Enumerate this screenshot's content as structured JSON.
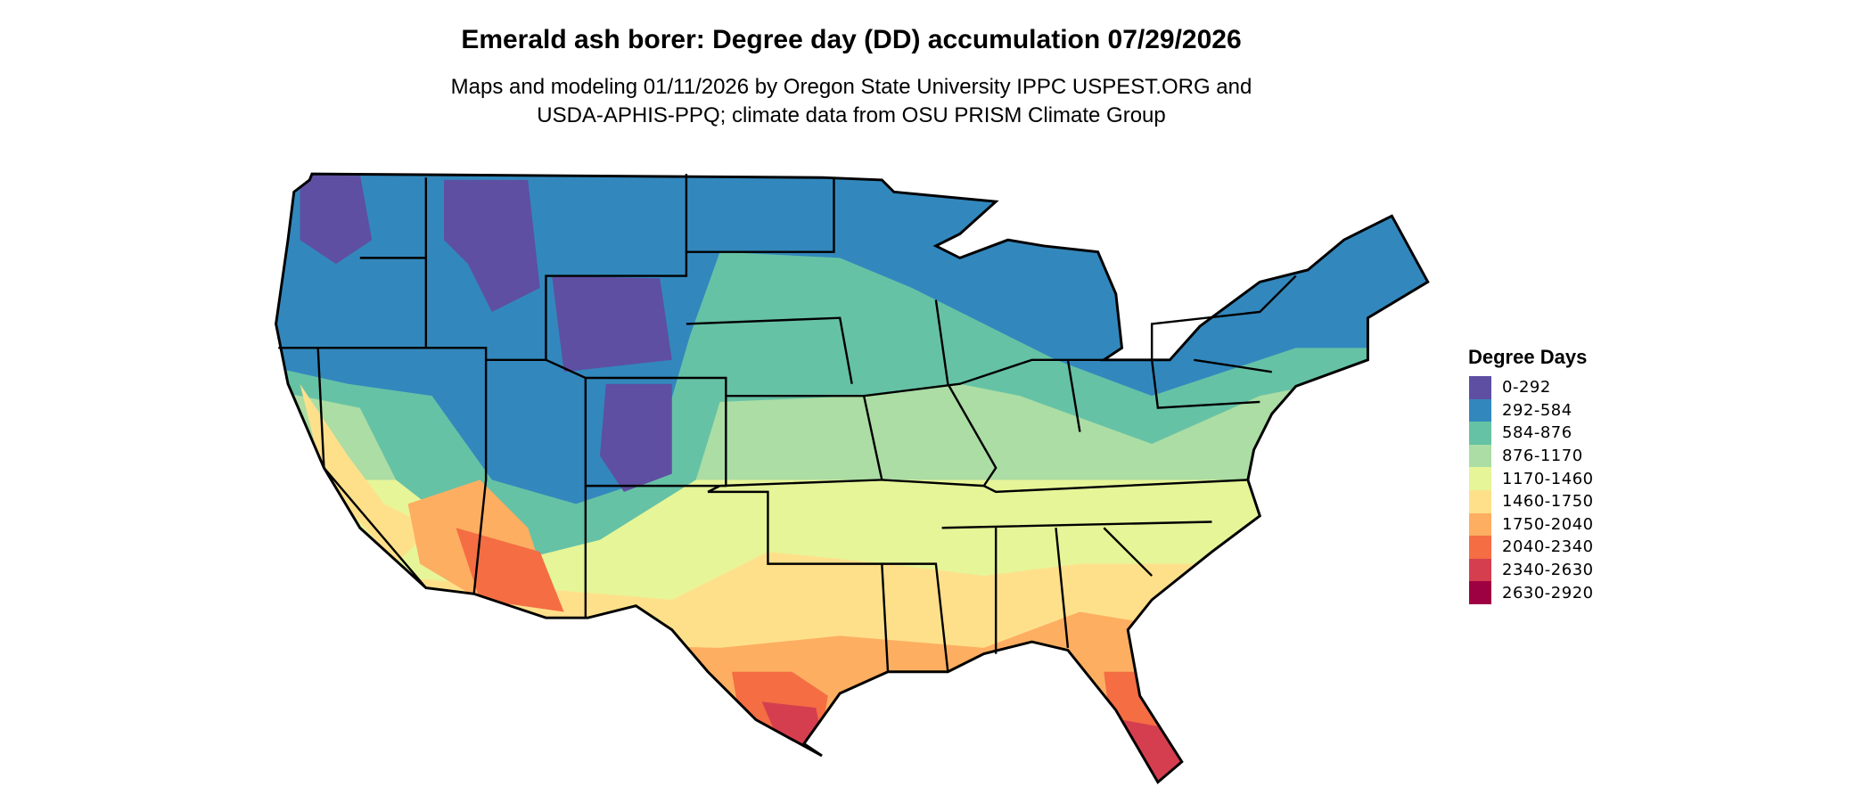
{
  "title": "Emerald ash borer: Degree day (DD) accumulation 07/29/2026",
  "subtitle_lines": [
    "Maps and modeling 01/11/2026 by Oregon State University IPPC USPEST.ORG and",
    "USDA-APHIS-PPQ; climate data from OSU PRISM Climate Group"
  ],
  "legend": {
    "title": "Degree Days",
    "items": [
      {
        "label": "0-292",
        "color": "#5E4FA2"
      },
      {
        "label": "292-584",
        "color": "#3288BD"
      },
      {
        "label": "584-876",
        "color": "#66C2A5"
      },
      {
        "label": "876-1170",
        "color": "#ABDDA4"
      },
      {
        "label": "1170-1460",
        "color": "#E6F598"
      },
      {
        "label": "1460-1750",
        "color": "#FEE08B"
      },
      {
        "label": "1750-2040",
        "color": "#FDAE61"
      },
      {
        "label": "2040-2340",
        "color": "#F46D43"
      },
      {
        "label": "2340-2630",
        "color": "#D53E4F"
      },
      {
        "label": "2630-2920",
        "color": "#9E0142"
      }
    ]
  }
}
